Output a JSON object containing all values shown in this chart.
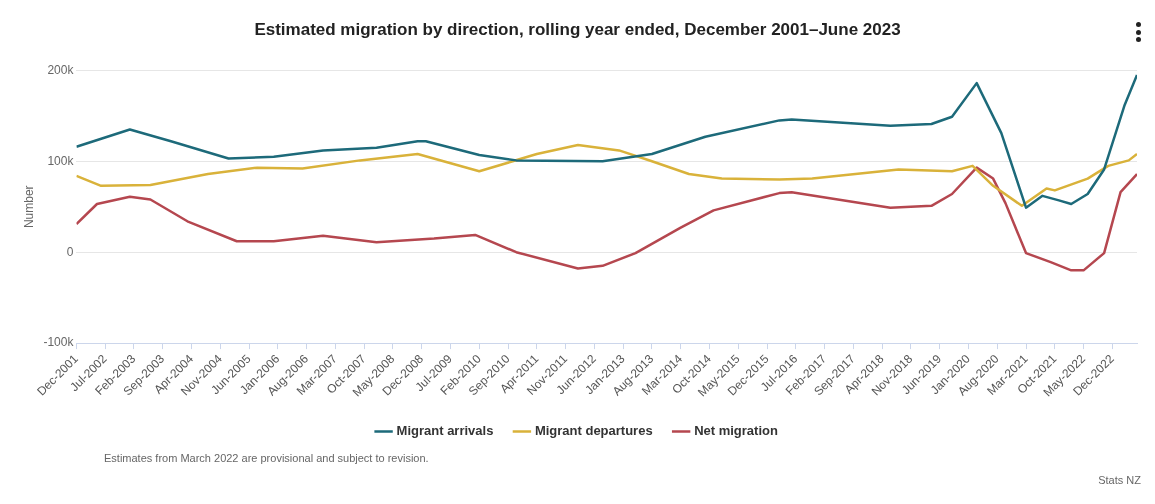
{
  "chart_data": {
    "type": "line",
    "title": "Estimated migration by direction, rolling year ended, December 2001–June 2023",
    "ylabel": "Number",
    "xlim": [
      "2001-12",
      "2023-06"
    ],
    "xticks": [
      {
        "value": "2001-12",
        "label": "Dec-2001"
      },
      {
        "value": "2002-07",
        "label": "Jul-2002"
      },
      {
        "value": "2003-02",
        "label": "Feb-2003"
      },
      {
        "value": "2003-09",
        "label": "Sep-2003"
      },
      {
        "value": "2004-04",
        "label": "Apr-2004"
      },
      {
        "value": "2004-11",
        "label": "Nov-2004"
      },
      {
        "value": "2005-06",
        "label": "Jun-2005"
      },
      {
        "value": "2006-01",
        "label": "Jan-2006"
      },
      {
        "value": "2006-08",
        "label": "Aug-2006"
      },
      {
        "value": "2007-03",
        "label": "Mar-2007"
      },
      {
        "value": "2007-10",
        "label": "Oct-2007"
      },
      {
        "value": "2008-05",
        "label": "May-2008"
      },
      {
        "value": "2008-12",
        "label": "Dec-2008"
      },
      {
        "value": "2009-07",
        "label": "Jul-2009"
      },
      {
        "value": "2010-02",
        "label": "Feb-2010"
      },
      {
        "value": "2010-09",
        "label": "Sep-2010"
      },
      {
        "value": "2011-04",
        "label": "Apr-2011"
      },
      {
        "value": "2011-11",
        "label": "Nov-2011"
      },
      {
        "value": "2012-06",
        "label": "Jun-2012"
      },
      {
        "value": "2013-01",
        "label": "Jan-2013"
      },
      {
        "value": "2013-08",
        "label": "Aug-2013"
      },
      {
        "value": "2014-03",
        "label": "Mar-2014"
      },
      {
        "value": "2014-10",
        "label": "Oct-2014"
      },
      {
        "value": "2015-05",
        "label": "May-2015"
      },
      {
        "value": "2015-12",
        "label": "Dec-2015"
      },
      {
        "value": "2016-07",
        "label": "Jul-2016"
      },
      {
        "value": "2017-02",
        "label": "Feb-2017"
      },
      {
        "value": "2017-09",
        "label": "Sep-2017"
      },
      {
        "value": "2018-04",
        "label": "Apr-2018"
      },
      {
        "value": "2018-11",
        "label": "Nov-2018"
      },
      {
        "value": "2019-06",
        "label": "Jun-2019"
      },
      {
        "value": "2020-01",
        "label": "Jan-2020"
      },
      {
        "value": "2020-08",
        "label": "Aug-2020"
      },
      {
        "value": "2021-03",
        "label": "Mar-2021"
      },
      {
        "value": "2021-10",
        "label": "Oct-2021"
      },
      {
        "value": "2022-05",
        "label": "May-2022"
      },
      {
        "value": "2022-12",
        "label": "Dec-2022"
      }
    ],
    "ylim": [
      -100000,
      200000
    ],
    "yticks": [
      {
        "value": -100000,
        "label": "-100k"
      },
      {
        "value": 0,
        "label": "0"
      },
      {
        "value": 100000,
        "label": "100k"
      },
      {
        "value": 200000,
        "label": "200k"
      }
    ],
    "grid": "y",
    "legend": "bottom",
    "marker": "none",
    "line_style": "solid",
    "series": [
      {
        "name": "Migrant arrivals",
        "color": "#1d6a7a",
        "x": [
          "2001-12",
          "2003-01",
          "2003-11",
          "2005-01",
          "2005-12",
          "2006-12",
          "2008-01",
          "2008-11",
          "2009-01",
          "2010-02",
          "2010-11",
          "2012-08",
          "2013-08",
          "2014-09",
          "2016-03",
          "2016-06",
          "2018-06",
          "2019-04",
          "2019-09",
          "2020-03",
          "2020-09",
          "2021-03",
          "2021-07",
          "2021-11",
          "2022-02",
          "2022-06",
          "2022-10",
          "2023-03",
          "2023-06"
        ],
        "values": [
          116000,
          135000,
          122000,
          103000,
          105000,
          112000,
          115000,
          122000,
          122000,
          107000,
          101000,
          100000,
          108000,
          127000,
          145000,
          146000,
          139000,
          141000,
          149000,
          186000,
          131000,
          49000,
          62000,
          57000,
          53000,
          64000,
          91000,
          162000,
          195000
        ]
      },
      {
        "name": "Migrant departures",
        "color": "#d9b23a",
        "x": [
          "2001-12",
          "2002-06",
          "2003-06",
          "2004-08",
          "2005-08",
          "2006-07",
          "2007-09",
          "2008-11",
          "2010-02",
          "2011-04",
          "2012-02",
          "2012-12",
          "2013-08",
          "2014-05",
          "2015-01",
          "2016-03",
          "2016-11",
          "2018-08",
          "2019-09",
          "2020-02",
          "2020-07",
          "2021-02",
          "2021-08",
          "2021-10",
          "2022-06",
          "2022-11",
          "2023-04",
          "2023-06"
        ],
        "values": [
          84000,
          73000,
          74000,
          86000,
          93000,
          92000,
          101000,
          108000,
          89000,
          108000,
          118000,
          112000,
          100000,
          86000,
          81000,
          80000,
          81000,
          91000,
          89000,
          95000,
          73000,
          51000,
          70000,
          68000,
          81000,
          95000,
          101000,
          108000
        ]
      },
      {
        "name": "Net migration",
        "color": "#b5474f",
        "x": [
          "2001-12",
          "2002-05",
          "2003-01",
          "2003-06",
          "2004-03",
          "2005-03",
          "2005-12",
          "2006-12",
          "2008-01",
          "2009-03",
          "2010-01",
          "2010-11",
          "2012-02",
          "2012-08",
          "2013-04",
          "2014-03",
          "2014-11",
          "2016-03",
          "2016-06",
          "2018-06",
          "2019-04",
          "2019-09",
          "2020-03",
          "2020-07",
          "2020-10",
          "2021-03",
          "2021-09",
          "2022-02",
          "2022-05",
          "2022-10",
          "2023-02",
          "2023-06"
        ],
        "values": [
          31000,
          53000,
          61000,
          58000,
          34000,
          12000,
          12000,
          18000,
          11000,
          15000,
          19000,
          0,
          -18000,
          -15000,
          -1000,
          27000,
          46000,
          65000,
          66000,
          49000,
          51000,
          64000,
          93000,
          81000,
          54000,
          -1000,
          -11000,
          -20000,
          -20000,
          -1000,
          66000,
          86000
        ]
      }
    ],
    "annotations": [
      "Estimates from March 2022 are provisional and subject to revision.",
      "Stats NZ"
    ]
  }
}
